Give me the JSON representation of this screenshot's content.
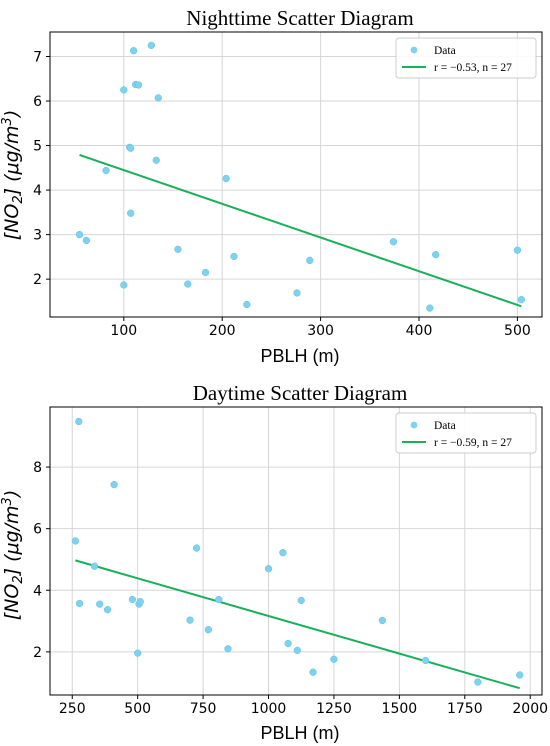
{
  "chart_data": [
    {
      "type": "scatter",
      "title": "Nighttime Scatter Diagram",
      "xlabel": "PBLH (m)",
      "ylabel": "[NO2] (μg/m3)",
      "xlim": [
        25,
        525
      ],
      "ylim": [
        1.15,
        7.55
      ],
      "xticks": [
        100,
        200,
        300,
        400,
        500
      ],
      "yticks": [
        2,
        3,
        4,
        5,
        6,
        7
      ],
      "grid": true,
      "legend": "top-right",
      "series": [
        {
          "name": "Data",
          "kind": "points",
          "color": "#7fd2ee",
          "x": [
            55,
            62,
            82,
            100,
            100,
            106,
            107,
            107,
            110,
            112,
            115,
            128,
            133,
            135,
            155,
            165,
            183,
            204,
            212,
            225,
            276,
            289,
            374,
            411,
            417,
            500,
            504
          ],
          "y": [
            3.0,
            2.87,
            4.44,
            6.25,
            1.87,
            4.96,
            3.48,
            4.94,
            7.13,
            6.37,
            6.36,
            7.25,
            4.67,
            6.07,
            2.67,
            1.89,
            2.15,
            4.26,
            2.51,
            1.43,
            1.69,
            2.42,
            2.84,
            1.35,
            2.55,
            2.65,
            1.54
          ]
        },
        {
          "name": "r = −0.53, n = 27",
          "kind": "line",
          "color": "#19b05a",
          "x": [
            55,
            504
          ],
          "y": [
            4.79,
            1.39
          ]
        }
      ]
    },
    {
      "type": "scatter",
      "title": "Daytime Scatter Diagram",
      "xlabel": "PBLH (m)",
      "ylabel": "[NO2] (μg/m3)",
      "xlim": [
        165,
        2045
      ],
      "ylim": [
        0.6,
        9.95
      ],
      "xticks": [
        250,
        500,
        750,
        1000,
        1250,
        1500,
        1750,
        2000
      ],
      "yticks": [
        2,
        4,
        6,
        8
      ],
      "grid": true,
      "legend": "top-right",
      "series": [
        {
          "name": "Data",
          "kind": "points",
          "color": "#7fd2ee",
          "x": [
            262,
            275,
            278,
            335,
            355,
            385,
            410,
            480,
            500,
            505,
            510,
            700,
            725,
            770,
            810,
            845,
            1000,
            1055,
            1075,
            1110,
            1125,
            1170,
            1250,
            1435,
            1600,
            1800,
            1960
          ],
          "y": [
            5.6,
            9.48,
            3.57,
            4.78,
            3.55,
            3.37,
            7.43,
            3.7,
            1.96,
            3.55,
            3.63,
            3.03,
            5.37,
            2.72,
            3.7,
            2.1,
            4.7,
            5.22,
            2.27,
            2.05,
            3.67,
            1.34,
            1.76,
            3.02,
            1.72,
            1.02,
            1.25
          ]
        },
        {
          "name": "r = −0.59, n = 27",
          "kind": "line",
          "color": "#19b05a",
          "x": [
            262,
            1960
          ],
          "y": [
            4.97,
            0.82
          ]
        }
      ]
    }
  ]
}
